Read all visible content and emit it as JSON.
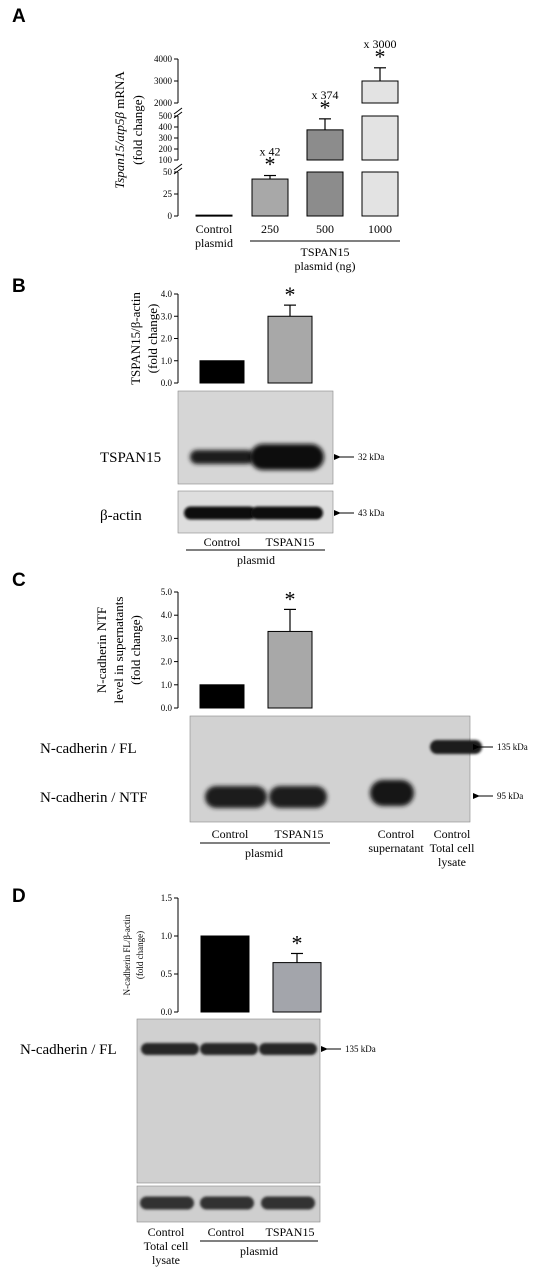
{
  "panels": {
    "A": {
      "letter": "A"
    },
    "B": {
      "letter": "B"
    },
    "C": {
      "letter": "C"
    },
    "D": {
      "letter": "D"
    }
  },
  "chart_data": [
    {
      "panel": "A",
      "type": "bar",
      "categories": [
        "Control\nplasmid",
        "250",
        "500",
        "1000"
      ],
      "group_label": "TSPAN15\nplasmid (ng)",
      "values": [
        1,
        42,
        374,
        3000
      ],
      "errors": [
        0,
        4,
        100,
        600
      ],
      "bar_colors": [
        "#000000",
        "#a8a8a8",
        "#8c8c8c",
        "#e3e3e3"
      ],
      "annotations": [
        "",
        "x 42",
        "x 374",
        "x 3000"
      ],
      "significance": [
        false,
        true,
        true,
        true
      ],
      "ylabel_italic": "Tspan15/atp5β",
      "ylabel_suffix": " mRNA",
      "ylabel2": "(fold change)",
      "y_segments": [
        {
          "range": [
            0,
            50
          ],
          "ticks": [
            0,
            25,
            50
          ]
        },
        {
          "range": [
            100,
            500
          ],
          "ticks": [
            100,
            200,
            300,
            400,
            500
          ]
        },
        {
          "range": [
            2000,
            4000
          ],
          "ticks": [
            2000,
            3000,
            4000
          ]
        }
      ],
      "broken_axis": true
    },
    {
      "panel": "B",
      "type": "bar",
      "categories": [
        "Control",
        "TSPAN15"
      ],
      "values": [
        1.0,
        3.0
      ],
      "errors": [
        0,
        0.5
      ],
      "bar_colors": [
        "#000000",
        "#a8a8a8"
      ],
      "significance": [
        false,
        true
      ],
      "ylabel": "TSPAN15/β-actin",
      "ylabel2": "(fold change)",
      "ylim": [
        0,
        4
      ],
      "yticks": [
        "0.0",
        "1.0",
        "2.0",
        "3.0",
        "4.0"
      ],
      "blots": [
        {
          "label": "TSPAN15",
          "marker": "32 kDa"
        },
        {
          "label": "β-actin",
          "marker": "43 kDa"
        }
      ],
      "group_label": "plasmid"
    },
    {
      "panel": "C",
      "type": "bar",
      "categories": [
        "Control",
        "TSPAN15"
      ],
      "extra_lanes": [
        "Control\nsupernatant",
        "Control\nTotal cell\nlysate"
      ],
      "values": [
        1.0,
        3.3
      ],
      "errors": [
        0,
        0.95
      ],
      "bar_colors": [
        "#000000",
        "#a8a8a8"
      ],
      "significance": [
        false,
        true
      ],
      "ylabel": "N-cadherin NTF",
      "ylabel2": "level in supernatants",
      "ylabel3": "(fold change)",
      "ylim": [
        0,
        5
      ],
      "yticks": [
        "0.0",
        "1.0",
        "2.0",
        "3.0",
        "4.0",
        "5.0"
      ],
      "blots": [
        {
          "label": "N-cadherin / FL",
          "marker": "135 kDa"
        },
        {
          "label": "N-cadherin / NTF",
          "marker": "95 kDa"
        }
      ],
      "group_label": "plasmid"
    },
    {
      "panel": "D",
      "type": "bar",
      "categories": [
        "Control",
        "TSPAN15"
      ],
      "extra_lanes": [
        "Control\nTotal cell\nlysate"
      ],
      "values": [
        1.0,
        0.65
      ],
      "errors": [
        0,
        0.12
      ],
      "bar_colors": [
        "#000000",
        "#a3a5ab"
      ],
      "significance": [
        false,
        true
      ],
      "ylabel": "N-cadherin FL/β-actin",
      "ylabel2": "(fold change)",
      "ylim": [
        0,
        1.5
      ],
      "yticks": [
        "0.0",
        "0.5",
        "1.0",
        "1.5"
      ],
      "blots": [
        {
          "label": "N-cadherin / FL",
          "marker": "135 kDa"
        }
      ],
      "group_label": "plasmid"
    }
  ]
}
